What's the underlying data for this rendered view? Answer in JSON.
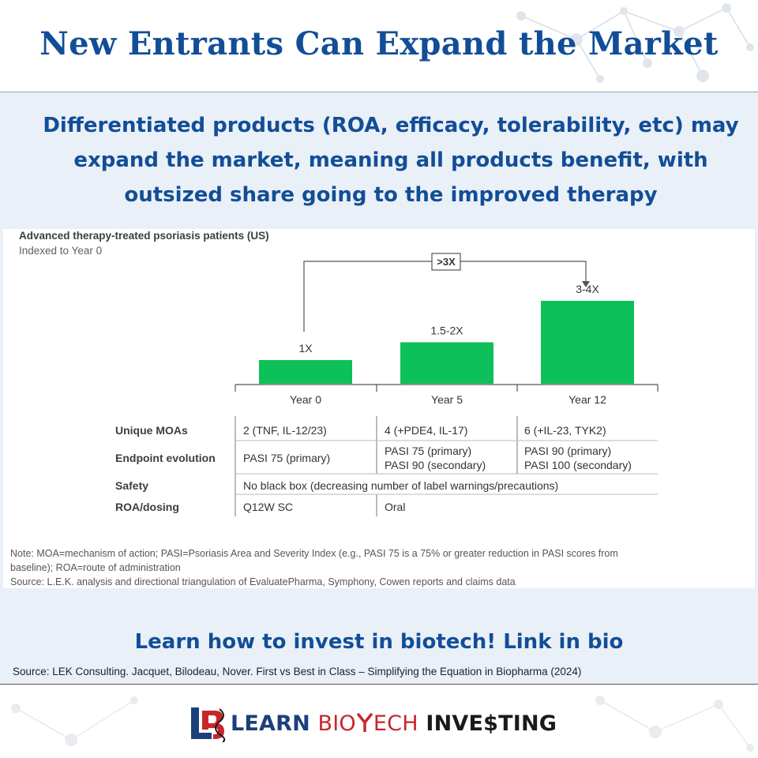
{
  "header": {
    "title": "New Entrants Can Expand the Market"
  },
  "subhead": {
    "line1": "Differentiated products (ROA, efficacy, tolerability, etc) may",
    "line2": "expand the market, meaning all products benefit, with",
    "line3": "outsized share going to the improved therapy"
  },
  "chart_data": {
    "type": "bar",
    "title": "Advanced therapy-treated psoriasis patients (US)",
    "subtitle": "Indexed to Year 0",
    "categories": [
      "Year 0",
      "Year 5",
      "Year 12"
    ],
    "values": [
      1,
      1.75,
      3.5
    ],
    "data_labels": [
      "1X",
      "1.5-2X",
      "3-4X"
    ],
    "bracket_label": ">3X",
    "bar_color": "#0dc05a",
    "table": {
      "rows": [
        {
          "label": "Unique MOAs",
          "cells": [
            "2 (TNF, IL-12/23)",
            "4 (+PDE4, IL-17)",
            "6 (+IL-23, TYK2)"
          ]
        },
        {
          "label": "Endpoint evolution",
          "cells": [
            "PASI 75 (primary)",
            "PASI 75 (primary)\nPASI 90 (secondary)",
            "PASI 90 (primary)\nPASI 100 (secondary)"
          ]
        },
        {
          "label": "Safety",
          "cells": [
            "No black box (decreasing number of label warnings/precautions)"
          ]
        },
        {
          "label": "ROA/dosing",
          "cells": [
            "Q12W SC",
            "Oral"
          ]
        }
      ]
    },
    "notes": {
      "line1": "Note: MOA=mechanism of action; PASI=Psoriasis Area and Severity Index (e.g., PASI 75 is a 75% or greater reduction in PASI scores from",
      "line2": "baseline); ROA=route of administration",
      "line3": "Source: L.E.K. analysis and directional triangulation of EvaluatePharma, Symphony, Cowen reports and claims data"
    }
  },
  "cta": "Learn how to invest in biotech! Link in bio",
  "source": "Source: LEK Consulting. Jacquet, Bilodeau, Nover. First vs Best in Class – Simplifying the Equation in Biopharma (2024)",
  "logo": {
    "part1": "LEARN",
    "part2": "BIO",
    "part3": "ECH",
    "part4": "INVE$TING"
  },
  "colors": {
    "brand_blue": "#124e97",
    "bar_green": "#0dc05a",
    "panel_bg": "#eaf0f7"
  }
}
